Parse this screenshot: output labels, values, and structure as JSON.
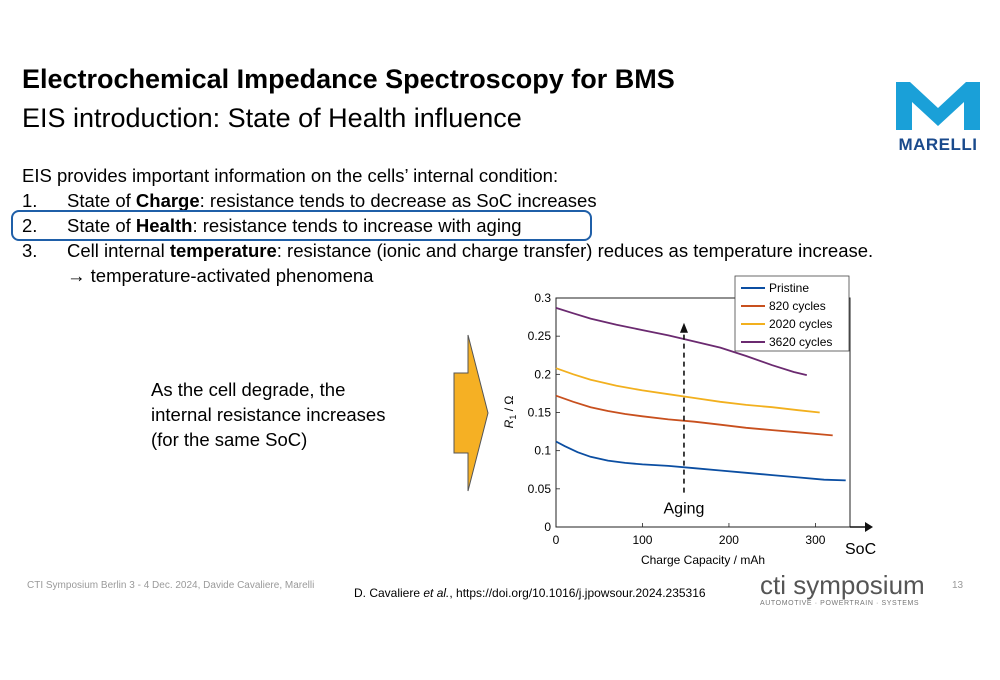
{
  "header": {
    "title": "Electrochemical Impedance Spectroscopy for BMS",
    "subtitle": "EIS introduction: State of Health influence"
  },
  "logo": {
    "text": "MARELLI",
    "color": "#1aa0d8"
  },
  "body": {
    "intro": "EIS provides important information on the cells’ internal condition:",
    "items": [
      {
        "num": "1.",
        "pre": "State of ",
        "bold": "Charge",
        "post": ": resistance tends to decrease as SoC increases"
      },
      {
        "num": "2.",
        "pre": "State of ",
        "bold": "Health",
        "post": ": resistance tends to increase with aging"
      },
      {
        "num": "3.",
        "pre": "Cell internal ",
        "bold": "temperature",
        "post": ": resistance (ionic and charge transfer) reduces as temperature increase."
      }
    ],
    "item3_cont": "→ temperature-activated phenomena"
  },
  "callout": {
    "lines": [
      "As the cell degrade, the",
      "internal resistance increases",
      "(for the same SoC)"
    ]
  },
  "chart_data": {
    "type": "line",
    "xlabel": "Charge Capacity / mAh",
    "ylabel_main": "R",
    "ylabel_sub": "1",
    "ylabel_unit": " / Ω",
    "xlim": [
      0,
      340
    ],
    "ylim": [
      0,
      0.3
    ],
    "xticks": [
      0,
      100,
      200,
      300
    ],
    "yticks": [
      0,
      0.05,
      0.1,
      0.15,
      0.2,
      0.25,
      0.3
    ],
    "ytick_labels": [
      "0",
      "0.05",
      "0.1",
      "0.15",
      "0.2",
      "0.25",
      "0.3"
    ],
    "series": [
      {
        "name": "Pristine",
        "color": "#0b4ea2",
        "x": [
          0,
          10,
          25,
          40,
          60,
          80,
          100,
          130,
          160,
          190,
          220,
          250,
          280,
          310,
          335
        ],
        "y": [
          0.112,
          0.106,
          0.098,
          0.092,
          0.087,
          0.084,
          0.082,
          0.08,
          0.077,
          0.074,
          0.071,
          0.068,
          0.065,
          0.062,
          0.061
        ]
      },
      {
        "name": "820 cycles",
        "color": "#c8501e",
        "x": [
          0,
          20,
          40,
          60,
          80,
          100,
          130,
          160,
          190,
          220,
          250,
          280,
          310,
          320
        ],
        "y": [
          0.172,
          0.164,
          0.157,
          0.152,
          0.148,
          0.145,
          0.141,
          0.138,
          0.134,
          0.13,
          0.127,
          0.124,
          0.121,
          0.12
        ]
      },
      {
        "name": "2020 cycles",
        "color": "#f2b01e",
        "x": [
          0,
          20,
          40,
          70,
          100,
          130,
          160,
          190,
          220,
          250,
          280,
          305
        ],
        "y": [
          0.208,
          0.2,
          0.193,
          0.185,
          0.179,
          0.174,
          0.169,
          0.164,
          0.16,
          0.157,
          0.153,
          0.15
        ]
      },
      {
        "name": "3620 cycles",
        "color": "#6b2a70",
        "x": [
          0,
          20,
          40,
          70,
          100,
          130,
          160,
          190,
          220,
          250,
          275,
          290
        ],
        "y": [
          0.287,
          0.28,
          0.273,
          0.265,
          0.258,
          0.251,
          0.243,
          0.235,
          0.224,
          0.212,
          0.203,
          0.199
        ]
      }
    ],
    "annotation": {
      "text": "Aging",
      "x": 148,
      "y_from": 0.045,
      "y_to": 0.265
    },
    "soc_label": "SoC",
    "legend": "top-right"
  },
  "footer": {
    "left": "CTI Symposium Berlin 3 - 4 Dec. 2024, Davide Cavaliere, Marelli",
    "citation_pre": "D. Cavaliere ",
    "citation_em": "et al.",
    "citation_post": ", https://doi.org/10.1016/j.jpowsour.2024.235316",
    "page": "13"
  },
  "cti": {
    "main": "cti symposium",
    "sub": "AUTOMOTIVE · POWERTRAIN · SYSTEMS"
  },
  "colors": {
    "highlight": "#1f5fa8",
    "arrow": "#f5b024",
    "logo_text": "#1a4a8c"
  }
}
